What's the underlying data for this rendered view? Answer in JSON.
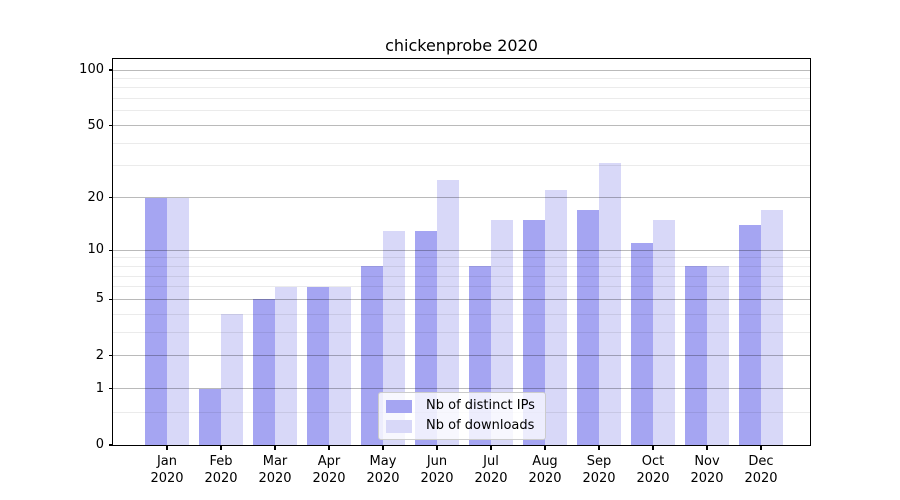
{
  "title": "chickenprobe 2020",
  "colors": {
    "series": [
      "#a5a5f2",
      "#d8d8f8"
    ],
    "grid_major": "#bababa",
    "grid_minor": "#ebebeb",
    "axis": "#000000",
    "legend_border": "#cccccc"
  },
  "legend": {
    "entries": [
      "Nb of distinct IPs",
      "Nb of downloads"
    ]
  },
  "chart_data": {
    "type": "bar",
    "title": "chickenprobe 2020",
    "xlabel": "",
    "ylabel": "",
    "year": "2020",
    "months": [
      "Jan",
      "Feb",
      "Mar",
      "Apr",
      "May",
      "Jun",
      "Jul",
      "Aug",
      "Sep",
      "Oct",
      "Nov",
      "Dec"
    ],
    "categories": [
      "Jan 2020",
      "Feb 2020",
      "Mar 2020",
      "Apr 2020",
      "May 2020",
      "Jun 2020",
      "Jul 2020",
      "Aug 2020",
      "Sep 2020",
      "Oct 2020",
      "Nov 2020",
      "Dec 2020"
    ],
    "series": [
      {
        "name": "Nb of distinct IPs",
        "values": [
          20,
          1,
          5,
          6,
          8,
          13,
          8,
          15,
          17,
          11,
          8,
          14
        ]
      },
      {
        "name": "Nb of downloads",
        "values": [
          20,
          4,
          6,
          6,
          13,
          25,
          15,
          22,
          31,
          15,
          8,
          17
        ]
      }
    ],
    "y_axis": {
      "scale": "log1p",
      "tick_values": [
        0,
        1,
        2,
        5,
        10,
        20,
        50,
        100
      ],
      "minor_tick_values": [
        0.5,
        3,
        4,
        6,
        7,
        8,
        9,
        30,
        40,
        60,
        70,
        80,
        90
      ],
      "ylim": [
        0,
        115
      ]
    },
    "grid": true,
    "legend_position": "lower center"
  }
}
